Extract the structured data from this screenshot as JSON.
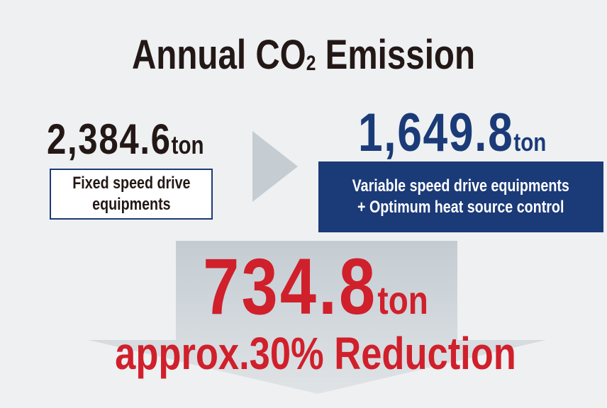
{
  "title": {
    "text": "Annual CO",
    "subscript": "2",
    "suffix": "Emission"
  },
  "before": {
    "value": "2,384.6",
    "unit": "ton",
    "label_lines": [
      "Fixed speed drive",
      "equipments"
    ]
  },
  "after": {
    "value": "1,649.8",
    "unit": "ton",
    "label_lines": [
      "Variable speed drive equipments",
      "+ Optimum heat source control"
    ]
  },
  "reduction": {
    "value": "734.8",
    "unit": "ton",
    "caption": "approx.30% Reduction"
  }
}
